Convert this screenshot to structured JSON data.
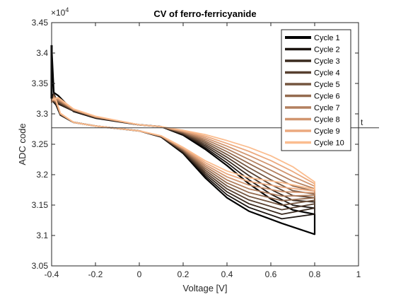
{
  "chart_data": {
    "type": "line",
    "title": "CV of ferro-ferricyanide",
    "xlabel": "Voltage [V]",
    "ylabel": "ADC code",
    "xlim": [
      -0.4,
      1.0
    ],
    "ylim": [
      30500,
      34500
    ],
    "x_ticks": [
      "-0.4",
      "-0.2",
      "0",
      "0.2",
      "0.4",
      "0.6",
      "0.8",
      "1"
    ],
    "y_ticks": [
      "3.05",
      "3.1",
      "3.15",
      "3.2",
      "3.25",
      "3.3",
      "3.35",
      "3.4",
      "3.45"
    ],
    "y_multiplier": "×10",
    "y_multiplier_exp": "4",
    "grid": false,
    "legend_position": "top-right",
    "reference_line": {
      "y": 32770,
      "label": "t"
    },
    "colors": [
      "#000000",
      "#1c1410",
      "#3a2a1f",
      "#573f2f",
      "#74553f",
      "#946b4f",
      "#b3805f",
      "#d1956f",
      "#eba97e",
      "#fbbd8f"
    ],
    "series": [
      {
        "name": "Cycle 1",
        "x_start": -0.4,
        "x_end": 0.8,
        "y_start": 34100,
        "knee_y": 31000,
        "upper_end_y": 31350,
        "lower_end_y": 31020
      },
      {
        "name": "Cycle 2",
        "x_start": -0.4,
        "x_end": 0.8,
        "y_start": 33250,
        "knee_y": 31150,
        "upper_end_y": 31450,
        "lower_end_y": 31350
      },
      {
        "name": "Cycle 3",
        "x_start": -0.4,
        "x_end": 0.8,
        "y_start": 33230,
        "knee_y": 31320,
        "upper_end_y": 31550,
        "lower_end_y": 31450
      },
      {
        "name": "Cycle 4",
        "x_start": -0.4,
        "x_end": 0.8,
        "y_start": 33210,
        "knee_y": 31450,
        "upper_end_y": 31620,
        "lower_end_y": 31520
      },
      {
        "name": "Cycle 5",
        "x_start": -0.4,
        "x_end": 0.8,
        "y_start": 33200,
        "knee_y": 31550,
        "upper_end_y": 31680,
        "lower_end_y": 31580
      },
      {
        "name": "Cycle 6",
        "x_start": -0.4,
        "x_end": 0.8,
        "y_start": 33190,
        "knee_y": 31630,
        "upper_end_y": 31730,
        "lower_end_y": 31620
      },
      {
        "name": "Cycle 7",
        "x_start": -0.4,
        "x_end": 0.8,
        "y_start": 33190,
        "knee_y": 31700,
        "upper_end_y": 31770,
        "lower_end_y": 31660
      },
      {
        "name": "Cycle 8",
        "x_start": -0.4,
        "x_end": 0.8,
        "y_start": 33200,
        "knee_y": 31760,
        "upper_end_y": 31810,
        "lower_end_y": 31700
      },
      {
        "name": "Cycle 9",
        "x_start": -0.4,
        "x_end": 0.8,
        "y_start": 33220,
        "knee_y": 31810,
        "upper_end_y": 31850,
        "lower_end_y": 31730
      },
      {
        "name": "Cycle 10",
        "x_start": -0.4,
        "x_end": 0.8,
        "y_start": 33250,
        "knee_y": 31850,
        "upper_end_y": 31880,
        "lower_end_y": 31760
      }
    ]
  }
}
